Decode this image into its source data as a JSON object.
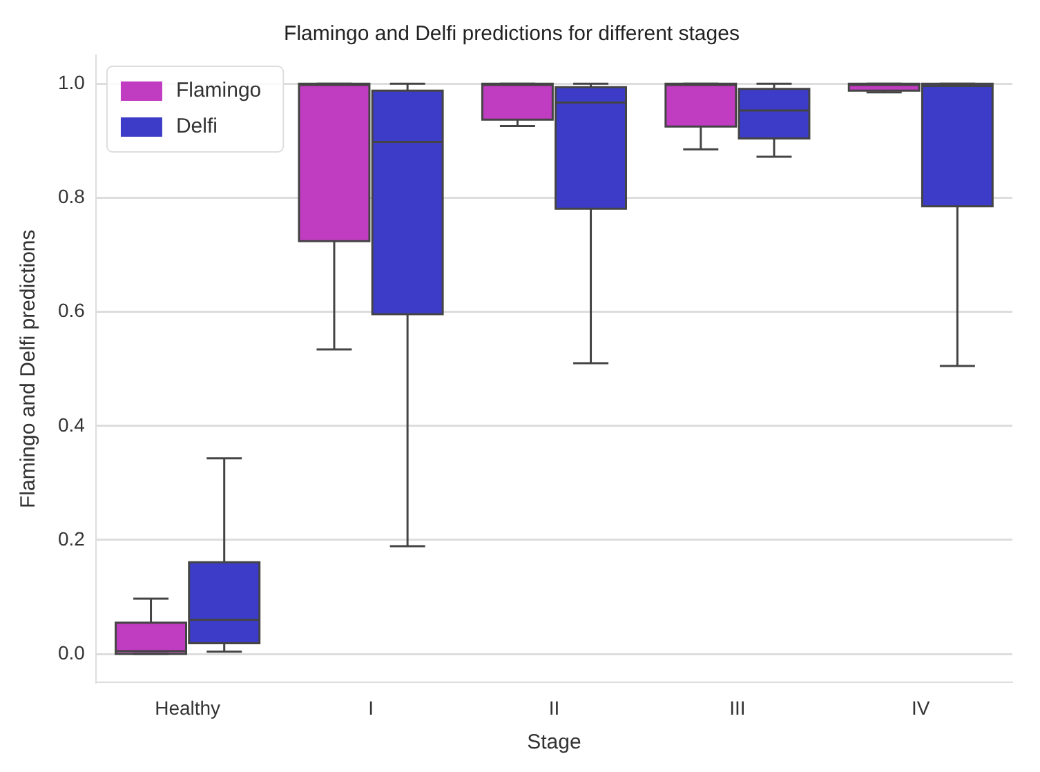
{
  "chart_data": {
    "type": "box",
    "title": "Flamingo and Delfi predictions for different stages",
    "xlabel": "Stage",
    "ylabel": "Flamingo and Delfi predictions",
    "categories": [
      "Healthy",
      "I",
      "II",
      "III",
      "IV"
    ],
    "series": [
      {
        "name": "Flamingo",
        "color": "#c03cc0",
        "boxes": [
          {
            "low": 0,
            "q1": 0,
            "median": 0.005,
            "q3": 0.055,
            "high": 0.097
          },
          {
            "low": 0.534,
            "q1": 0.724,
            "median": 0.998,
            "q3": 1.0,
            "high": 1.0
          },
          {
            "low": 0.926,
            "q1": 0.937,
            "median": 0.998,
            "q3": 1.0,
            "high": 1.0
          },
          {
            "low": 0.885,
            "q1": 0.925,
            "median": 0.998,
            "q3": 1.0,
            "high": 1.0
          },
          {
            "low": 0.985,
            "q1": 0.988,
            "median": 0.998,
            "q3": 1.0,
            "high": 1.0
          }
        ]
      },
      {
        "name": "Delfi",
        "color": "#3c3cc8",
        "boxes": [
          {
            "low": 0.004,
            "q1": 0.019,
            "median": 0.06,
            "q3": 0.161,
            "high": 0.343
          },
          {
            "low": 0.189,
            "q1": 0.596,
            "median": 0.898,
            "q3": 0.988,
            "high": 1.0
          },
          {
            "low": 0.51,
            "q1": 0.781,
            "median": 0.967,
            "q3": 0.994,
            "high": 1.0
          },
          {
            "low": 0.872,
            "q1": 0.904,
            "median": 0.953,
            "q3": 0.991,
            "high": 1.0
          },
          {
            "low": 0.505,
            "q1": 0.785,
            "median": 0.996,
            "q3": 1.0,
            "high": 1.0
          }
        ]
      }
    ],
    "ylim": [
      -0.05,
      1.05
    ],
    "yticks": [
      {
        "value": 0,
        "label": "0.0"
      },
      {
        "value": 0.2,
        "label": "0.2"
      },
      {
        "value": 0.4,
        "label": "0.4"
      },
      {
        "value": 0.6,
        "label": "0.6"
      },
      {
        "value": 0.8,
        "label": "0.8"
      },
      {
        "value": 1.0,
        "label": "1.0"
      }
    ],
    "grid": "y",
    "legend": "top left"
  }
}
